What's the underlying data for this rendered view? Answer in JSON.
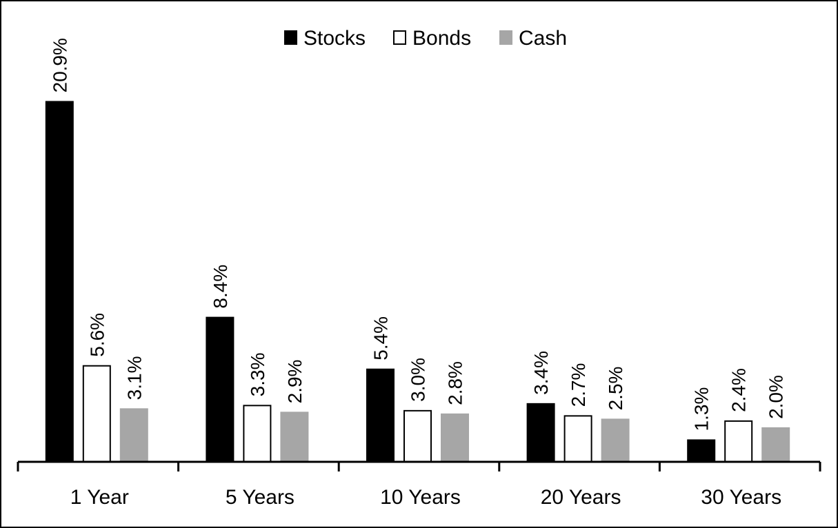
{
  "chart_data": {
    "type": "bar",
    "categories": [
      "1 Year",
      "5 Years",
      "10 Years",
      "20 Years",
      "30 Years"
    ],
    "series": [
      {
        "name": "Stocks",
        "values": [
          20.9,
          8.4,
          5.4,
          3.4,
          1.3
        ],
        "labels": [
          "20.9%",
          "8.4%",
          "5.4%",
          "3.4%",
          "1.3%"
        ],
        "color": "#000000",
        "fill": "#000000"
      },
      {
        "name": "Bonds",
        "values": [
          5.6,
          3.3,
          3.0,
          2.7,
          2.4
        ],
        "labels": [
          "5.6%",
          "3.3%",
          "3.0%",
          "2.7%",
          "2.4%"
        ],
        "color": "#000000",
        "fill": "#ffffff"
      },
      {
        "name": "Cash",
        "values": [
          3.1,
          2.9,
          2.8,
          2.5,
          2.0
        ],
        "labels": [
          "3.1%",
          "2.9%",
          "2.8%",
          "2.5%",
          "2.0%"
        ],
        "color": "#a6a6a6",
        "fill": "#a6a6a6"
      }
    ],
    "ylim": [
      0,
      21
    ],
    "grid": false,
    "legend_position": "top-center",
    "title": "",
    "xlabel": "",
    "ylabel": ""
  }
}
